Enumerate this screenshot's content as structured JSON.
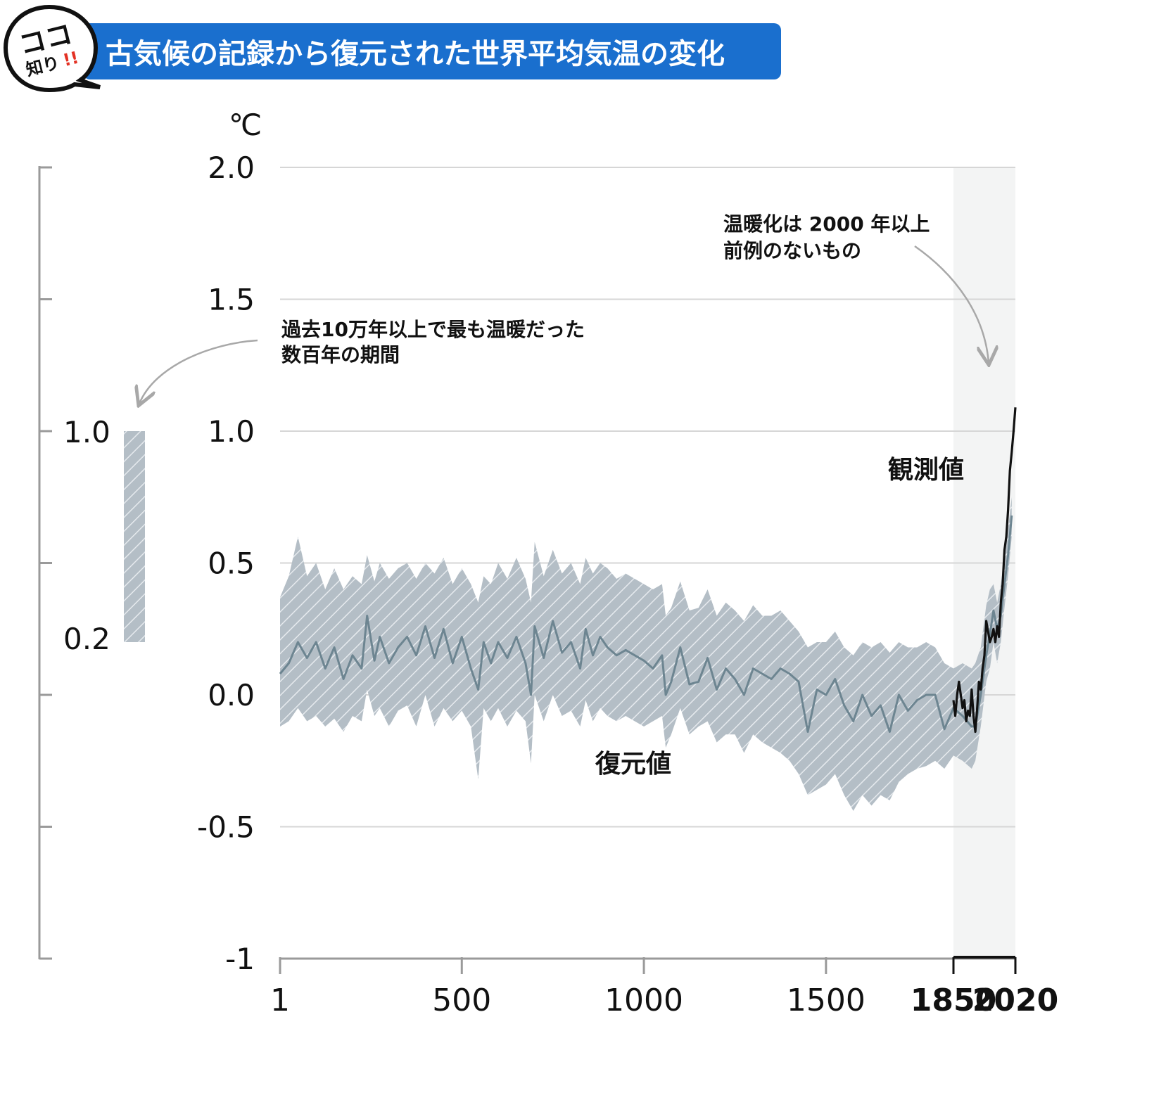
{
  "header": {
    "badge_line1": "ココ",
    "badge_line2": "知り",
    "badge_mark": "!!",
    "title": "古気候の記録から復元された世界平均気温の変化"
  },
  "colors": {
    "banner": "#1a6fce",
    "band": "#b4bec6",
    "hatch": "#e6eaee",
    "reconstruction_line": "#6d8591",
    "observed_line": "#111111",
    "recent_period_shade": "#f3f4f4",
    "grid": "#d6d6d6",
    "axis": "#9a9a9a",
    "annotation_arrow": "#a8a8a8"
  },
  "chart_data": {
    "type": "line",
    "unit": "℃",
    "x_ticks": [
      "1",
      "500",
      "1000",
      "1500",
      "1850",
      "2020"
    ],
    "y_ticks": [
      "2.0",
      "1.5",
      "1.0",
      "0.5",
      "0.0",
      "-0.5",
      "-1"
    ],
    "xlim": [
      1,
      2020
    ],
    "ylim": [
      -1,
      2
    ],
    "grid": true,
    "shaded_period": [
      1850,
      2020
    ],
    "series": [
      {
        "name": "復元値",
        "style": "line with hatched uncertainty band",
        "points": [
          [
            1,
            0.08,
            -0.12,
            0.37
          ],
          [
            25,
            0.12,
            -0.1,
            0.45
          ],
          [
            50,
            0.2,
            -0.05,
            0.6
          ],
          [
            75,
            0.14,
            -0.1,
            0.45
          ],
          [
            100,
            0.2,
            -0.08,
            0.5
          ],
          [
            125,
            0.1,
            -0.12,
            0.4
          ],
          [
            150,
            0.18,
            -0.09,
            0.48
          ],
          [
            175,
            0.06,
            -0.14,
            0.4
          ],
          [
            200,
            0.15,
            -0.08,
            0.45
          ],
          [
            225,
            0.1,
            -0.1,
            0.42
          ],
          [
            240,
            0.3,
            0.02,
            0.53
          ],
          [
            260,
            0.13,
            -0.08,
            0.43
          ],
          [
            275,
            0.22,
            -0.05,
            0.5
          ],
          [
            300,
            0.12,
            -0.12,
            0.44
          ],
          [
            325,
            0.18,
            -0.06,
            0.48
          ],
          [
            350,
            0.22,
            -0.04,
            0.5
          ],
          [
            375,
            0.15,
            -0.12,
            0.44
          ],
          [
            400,
            0.26,
            0.0,
            0.5
          ],
          [
            425,
            0.14,
            -0.12,
            0.46
          ],
          [
            450,
            0.25,
            -0.05,
            0.52
          ],
          [
            475,
            0.12,
            -0.1,
            0.42
          ],
          [
            500,
            0.22,
            -0.06,
            0.48
          ],
          [
            525,
            0.1,
            -0.12,
            0.42
          ],
          [
            545,
            0.02,
            -0.32,
            0.35
          ],
          [
            560,
            0.2,
            -0.05,
            0.45
          ],
          [
            580,
            0.12,
            -0.1,
            0.42
          ],
          [
            600,
            0.2,
            -0.05,
            0.5
          ],
          [
            625,
            0.14,
            -0.12,
            0.44
          ],
          [
            650,
            0.22,
            -0.06,
            0.52
          ],
          [
            675,
            0.12,
            -0.1,
            0.44
          ],
          [
            690,
            0.0,
            -0.26,
            0.35
          ],
          [
            700,
            0.26,
            0.0,
            0.58
          ],
          [
            725,
            0.14,
            -0.1,
            0.45
          ],
          [
            750,
            0.28,
            0.0,
            0.55
          ],
          [
            775,
            0.16,
            -0.08,
            0.46
          ],
          [
            800,
            0.2,
            -0.06,
            0.5
          ],
          [
            825,
            0.1,
            -0.12,
            0.42
          ],
          [
            840,
            0.25,
            -0.02,
            0.52
          ],
          [
            860,
            0.15,
            -0.1,
            0.46
          ],
          [
            880,
            0.22,
            -0.05,
            0.5
          ],
          [
            900,
            0.18,
            -0.08,
            0.48
          ],
          [
            925,
            0.15,
            -0.1,
            0.44
          ],
          [
            950,
            0.17,
            -0.08,
            0.46
          ],
          [
            975,
            0.15,
            -0.1,
            0.44
          ],
          [
            1000,
            0.13,
            -0.12,
            0.42
          ],
          [
            1025,
            0.1,
            -0.1,
            0.4
          ],
          [
            1050,
            0.15,
            -0.08,
            0.42
          ],
          [
            1060,
            0.0,
            -0.2,
            0.3
          ],
          [
            1075,
            0.05,
            -0.15,
            0.33
          ],
          [
            1100,
            0.18,
            -0.05,
            0.43
          ],
          [
            1125,
            0.04,
            -0.15,
            0.32
          ],
          [
            1150,
            0.05,
            -0.12,
            0.33
          ],
          [
            1175,
            0.14,
            -0.1,
            0.4
          ],
          [
            1200,
            0.02,
            -0.18,
            0.3
          ],
          [
            1225,
            0.1,
            -0.15,
            0.35
          ],
          [
            1250,
            0.06,
            -0.15,
            0.32
          ],
          [
            1275,
            0.0,
            -0.22,
            0.28
          ],
          [
            1300,
            0.1,
            -0.15,
            0.34
          ],
          [
            1325,
            0.08,
            -0.18,
            0.3
          ],
          [
            1350,
            0.06,
            -0.2,
            0.3
          ],
          [
            1375,
            0.1,
            -0.22,
            0.32
          ],
          [
            1400,
            0.08,
            -0.25,
            0.28
          ],
          [
            1425,
            0.05,
            -0.3,
            0.24
          ],
          [
            1450,
            -0.14,
            -0.38,
            0.18
          ],
          [
            1475,
            0.02,
            -0.36,
            0.2
          ],
          [
            1500,
            0.0,
            -0.34,
            0.2
          ],
          [
            1525,
            0.06,
            -0.3,
            0.24
          ],
          [
            1550,
            -0.04,
            -0.38,
            0.18
          ],
          [
            1575,
            -0.1,
            -0.44,
            0.15
          ],
          [
            1600,
            0.0,
            -0.38,
            0.2
          ],
          [
            1625,
            -0.08,
            -0.42,
            0.18
          ],
          [
            1650,
            -0.04,
            -0.38,
            0.2
          ],
          [
            1675,
            -0.14,
            -0.4,
            0.16
          ],
          [
            1700,
            0.0,
            -0.33,
            0.2
          ],
          [
            1725,
            -0.06,
            -0.3,
            0.18
          ],
          [
            1750,
            -0.02,
            -0.28,
            0.18
          ],
          [
            1775,
            0.0,
            -0.27,
            0.2
          ],
          [
            1800,
            0.0,
            -0.25,
            0.18
          ],
          [
            1825,
            -0.13,
            -0.28,
            0.12
          ],
          [
            1850,
            -0.05,
            -0.23,
            0.1
          ],
          [
            1875,
            -0.08,
            -0.25,
            0.12
          ],
          [
            1900,
            -0.12,
            -0.28,
            0.1
          ],
          [
            1910,
            -0.12,
            -0.25,
            0.12
          ],
          [
            1925,
            0.0,
            -0.12,
            0.18
          ],
          [
            1940,
            0.15,
            0.05,
            0.34
          ],
          [
            1950,
            0.23,
            0.1,
            0.4
          ],
          [
            1960,
            0.32,
            0.2,
            0.42
          ],
          [
            1970,
            0.25,
            0.12,
            0.35
          ],
          [
            1980,
            0.3,
            0.2,
            0.42
          ],
          [
            1990,
            0.42,
            0.33,
            0.52
          ],
          [
            2000,
            0.53,
            0.45,
            0.63
          ],
          [
            2010,
            0.68,
            0.6,
            0.75
          ]
        ]
      },
      {
        "name": "観測値",
        "style": "line",
        "points": [
          [
            1850,
            -0.02
          ],
          [
            1855,
            -0.08
          ],
          [
            1860,
            0.0
          ],
          [
            1865,
            0.05
          ],
          [
            1870,
            0.0
          ],
          [
            1875,
            -0.05
          ],
          [
            1880,
            -0.02
          ],
          [
            1885,
            -0.1
          ],
          [
            1890,
            -0.06
          ],
          [
            1895,
            -0.08
          ],
          [
            1900,
            0.02
          ],
          [
            1905,
            -0.08
          ],
          [
            1910,
            -0.14
          ],
          [
            1915,
            -0.05
          ],
          [
            1920,
            0.05
          ],
          [
            1925,
            0.02
          ],
          [
            1930,
            0.1
          ],
          [
            1935,
            0.15
          ],
          [
            1940,
            0.28
          ],
          [
            1945,
            0.24
          ],
          [
            1950,
            0.2
          ],
          [
            1955,
            0.22
          ],
          [
            1960,
            0.25
          ],
          [
            1965,
            0.2
          ],
          [
            1970,
            0.26
          ],
          [
            1975,
            0.22
          ],
          [
            1980,
            0.35
          ],
          [
            1985,
            0.42
          ],
          [
            1990,
            0.55
          ],
          [
            1995,
            0.6
          ],
          [
            2000,
            0.7
          ],
          [
            2005,
            0.85
          ],
          [
            2010,
            0.92
          ],
          [
            2015,
            1.0
          ],
          [
            2020,
            1.09
          ]
        ]
      }
    ],
    "labels": {
      "reconstruction": "復元値",
      "observed": "観測値"
    },
    "annotations": {
      "recent": [
        "温暖化は 2000 年以上",
        "前例のないもの"
      ],
      "warm_period": [
        "過去10万年以上で最も温暖だった",
        "数百年の期間"
      ]
    },
    "side_panel": {
      "type": "range bar",
      "low": 0.2,
      "high": 1.0,
      "low_label": "0.2",
      "high_label": "1.0"
    }
  }
}
